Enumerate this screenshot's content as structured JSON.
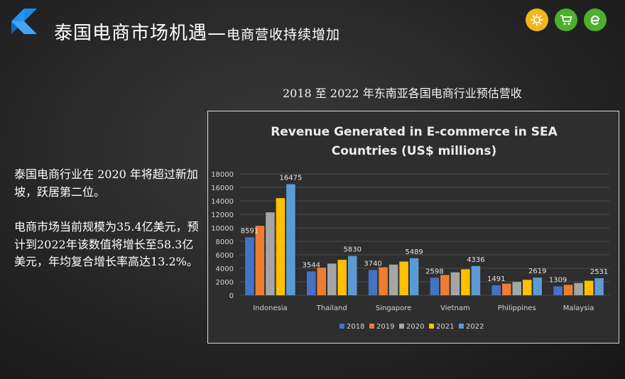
{
  "header": {
    "title": "泰国电商市场机遇",
    "dash": "—",
    "subtitle": "电商营收持续增加",
    "icons": [
      {
        "name": "gear-icon",
        "color": "#f2b51d"
      },
      {
        "name": "cart-icon",
        "color": "#4caf2e"
      },
      {
        "name": "ie-browser-icon",
        "color": "#4caf2e"
      }
    ]
  },
  "chart_caption": "2018 至 2022 年东南亚各国电商行业预估营收",
  "paragraphs": [
    "泰国电商行业在 2020 年将超过新加坡，跃居第二位。",
    "电商市场当前规模为35.4亿美元，预计到2022年该数值将增长至58.3亿美元，年均复合增长率高达13.2%。"
  ],
  "chart_data": {
    "type": "bar",
    "title": "Revenue Generated in E-commerce in SEA Countries (US$ millions)",
    "title_lines": [
      "Revenue Generated in E-commerce in SEA",
      "Countries (US$ millions)"
    ],
    "categories": [
      "Indonesia",
      "Thailand",
      "Singapore",
      "Vietnam",
      "Philippines",
      "Malaysia"
    ],
    "series": [
      {
        "name": "2018",
        "color": "#4472c4",
        "values": [
          8591,
          3544,
          3740,
          2598,
          1491,
          1309
        ]
      },
      {
        "name": "2019",
        "color": "#ed7d31",
        "values": [
          10300,
          4100,
          4150,
          3000,
          1720,
          1550
        ]
      },
      {
        "name": "2020",
        "color": "#a5a5a5",
        "values": [
          12300,
          4700,
          4550,
          3400,
          1980,
          1820
        ]
      },
      {
        "name": "2021",
        "color": "#ffc000",
        "values": [
          14400,
          5250,
          5000,
          3850,
          2290,
          2150
        ]
      },
      {
        "name": "2022",
        "color": "#5b9bd5",
        "values": [
          16475,
          5830,
          5489,
          4336,
          2619,
          2531
        ]
      }
    ],
    "data_labels": [
      {
        "category": "Indonesia",
        "series": "2018",
        "text": "8591"
      },
      {
        "category": "Indonesia",
        "series": "2022",
        "text": "16475"
      },
      {
        "category": "Thailand",
        "series": "2018",
        "text": "3544"
      },
      {
        "category": "Thailand",
        "series": "2022",
        "text": "5830"
      },
      {
        "category": "Singapore",
        "series": "2018",
        "text": "3740"
      },
      {
        "category": "Singapore",
        "series": "2022",
        "text": "5489"
      },
      {
        "category": "Vietnam",
        "series": "2018",
        "text": "2598"
      },
      {
        "category": "Vietnam",
        "series": "2022",
        "text": "4336"
      },
      {
        "category": "Philippines",
        "series": "2018",
        "text": "1491"
      },
      {
        "category": "Philippines",
        "series": "2022",
        "text": "2619"
      },
      {
        "category": "Malaysia",
        "series": "2018",
        "text": "1309"
      },
      {
        "category": "Malaysia",
        "series": "2022",
        "text": "2531"
      }
    ],
    "yticks": [
      0,
      2000,
      4000,
      6000,
      8000,
      10000,
      12000,
      14000,
      16000,
      18000
    ],
    "ylim": [
      0,
      18000
    ],
    "grid": true,
    "legend": "bottom",
    "xlabel": "",
    "ylabel": ""
  }
}
